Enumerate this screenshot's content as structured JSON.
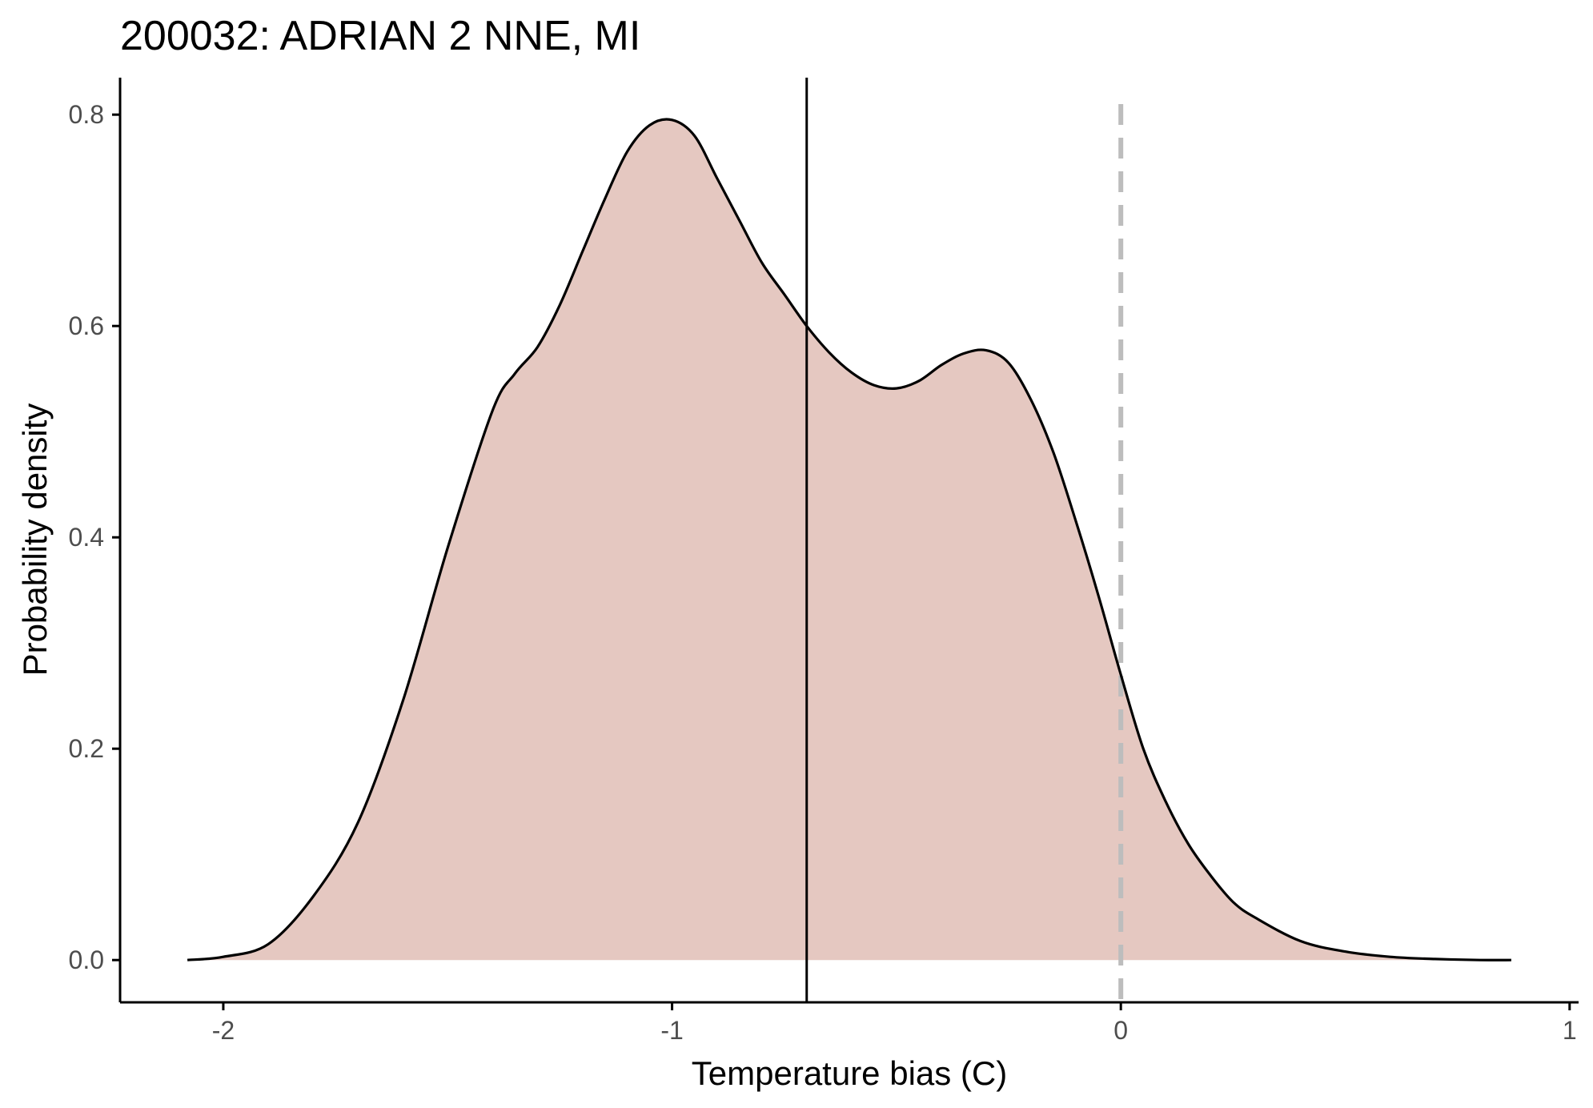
{
  "chart_data": {
    "type": "area",
    "title": "200032: ADRIAN 2 NNE, MI",
    "xlabel": "Temperature bias (C)",
    "ylabel": "Probability density",
    "xlim": [
      -2.23,
      1.02
    ],
    "ylim": [
      -0.04,
      0.835
    ],
    "x_ticks": [
      -2,
      -1,
      0,
      1
    ],
    "x_tick_labels": [
      "-2",
      "-1",
      "0",
      "1"
    ],
    "y_ticks": [
      0.0,
      0.2,
      0.4,
      0.6,
      0.8
    ],
    "y_tick_labels": [
      "0.0",
      "0.2",
      "0.4",
      "0.6",
      "0.8"
    ],
    "grid": false,
    "legend": "none",
    "fill_color": "#e5c8c1",
    "line_color": "#000000",
    "reference_lines": [
      {
        "axis": "x",
        "value": -0.7,
        "style": "solid",
        "color": "#000000"
      },
      {
        "axis": "x",
        "value": 0.0,
        "style": "dashed",
        "color": "#bdbdbd"
      }
    ],
    "density": {
      "x": [
        -2.08,
        -2.0,
        -1.9,
        -1.8,
        -1.7,
        -1.6,
        -1.5,
        -1.4,
        -1.35,
        -1.3,
        -1.25,
        -1.2,
        -1.15,
        -1.1,
        -1.05,
        -1.0,
        -0.95,
        -0.9,
        -0.85,
        -0.8,
        -0.75,
        -0.7,
        -0.65,
        -0.6,
        -0.55,
        -0.5,
        -0.45,
        -0.4,
        -0.35,
        -0.3,
        -0.25,
        -0.2,
        -0.15,
        -0.1,
        -0.05,
        0.0,
        0.05,
        0.1,
        0.15,
        0.2,
        0.25,
        0.3,
        0.4,
        0.5,
        0.6,
        0.7,
        0.8,
        0.87
      ],
      "y": [
        0.0,
        0.003,
        0.015,
        0.06,
        0.13,
        0.245,
        0.39,
        0.52,
        0.555,
        0.58,
        0.62,
        0.67,
        0.72,
        0.765,
        0.79,
        0.795,
        0.78,
        0.74,
        0.7,
        0.66,
        0.63,
        0.6,
        0.575,
        0.556,
        0.544,
        0.541,
        0.548,
        0.563,
        0.574,
        0.577,
        0.565,
        0.53,
        0.48,
        0.415,
        0.345,
        0.27,
        0.2,
        0.15,
        0.11,
        0.08,
        0.055,
        0.04,
        0.018,
        0.008,
        0.003,
        0.001,
        0.0,
        0.0
      ]
    }
  }
}
